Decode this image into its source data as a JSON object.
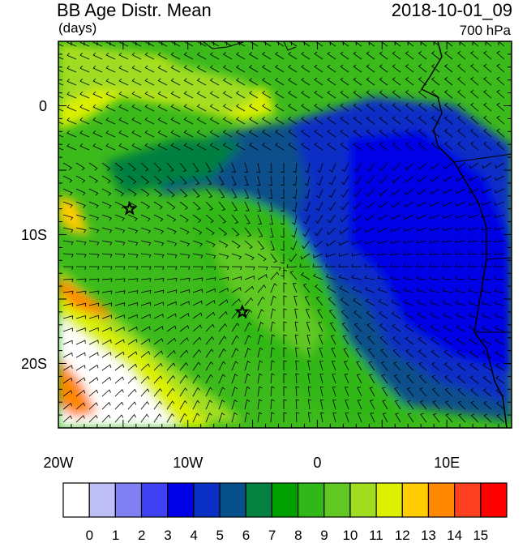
{
  "header": {
    "title": "BB Age Distr. Mean",
    "units": "(days)",
    "datetime": "2018-10-01_09",
    "level": "700 hPa"
  },
  "map": {
    "lon_range": [
      -20,
      15
    ],
    "lat_range": [
      -25,
      5
    ],
    "lon_ticks": [
      {
        "value": -20,
        "label": "20W"
      },
      {
        "value": -10,
        "label": "10W"
      },
      {
        "value": 0,
        "label": "0"
      },
      {
        "value": 10,
        "label": "10E"
      }
    ],
    "lat_ticks": [
      {
        "value": 0,
        "label": "0"
      },
      {
        "value": -10,
        "label": "10S"
      },
      {
        "value": -20,
        "label": "20S"
      }
    ],
    "markers": [
      {
        "name": "star-marker-west",
        "lon": -14.5,
        "lat": -8
      },
      {
        "name": "star-marker-south",
        "lon": -5.8,
        "lat": -16
      }
    ]
  },
  "colorbar": {
    "labels": [
      "0",
      "1",
      "2",
      "3",
      "4",
      "5",
      "6",
      "7",
      "8",
      "9",
      "10",
      "11",
      "12",
      "13",
      "14",
      "15"
    ],
    "colors": [
      "#ffffff",
      "#bfbff7",
      "#8080f2",
      "#4040f5",
      "#0000e6",
      "#0a2fc4",
      "#07508a",
      "#048040",
      "#00a000",
      "#30b818",
      "#60c820",
      "#a0dd20",
      "#ddf000",
      "#ffcc00",
      "#ff8800",
      "#ff4020",
      "#ff0000"
    ]
  }
}
